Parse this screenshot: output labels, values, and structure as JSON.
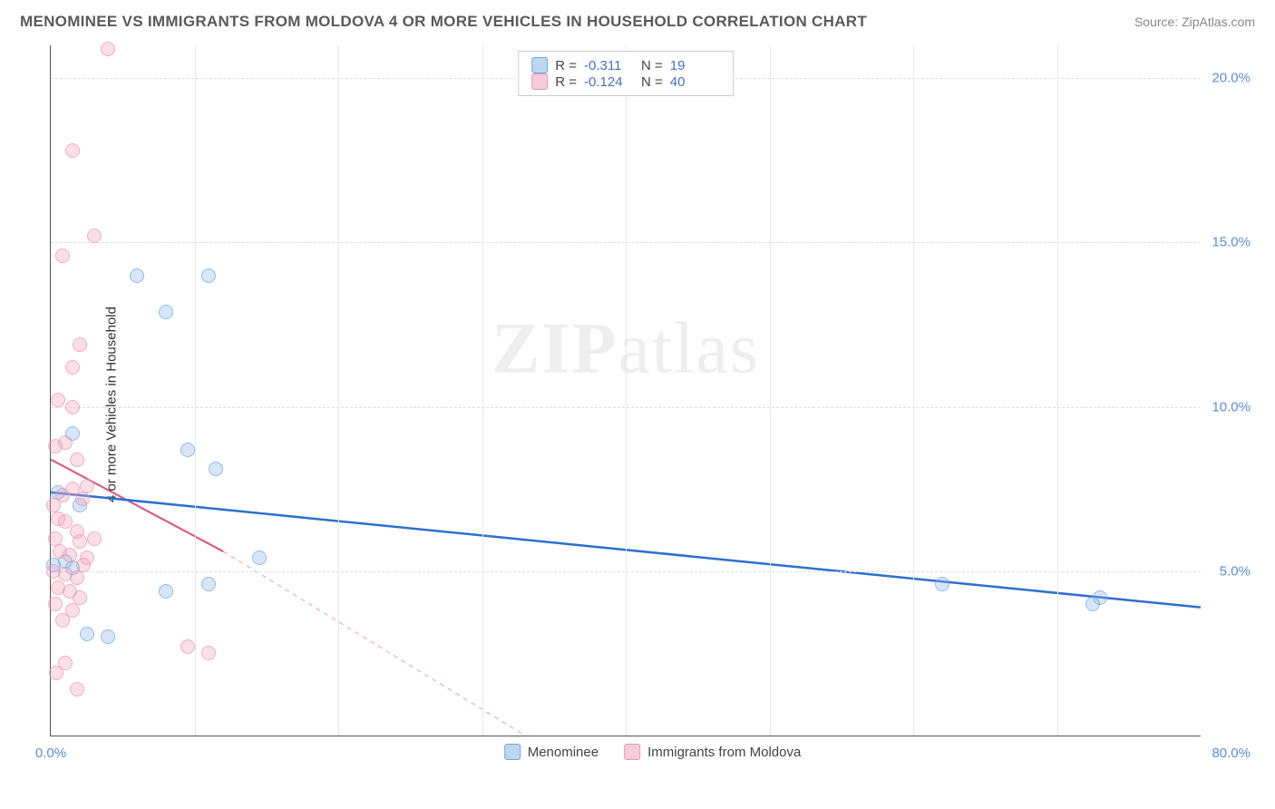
{
  "header": {
    "title": "MENOMINEE VS IMMIGRANTS FROM MOLDOVA 4 OR MORE VEHICLES IN HOUSEHOLD CORRELATION CHART",
    "source": "Source: ZipAtlas.com"
  },
  "watermark": {
    "bold": "ZIP",
    "light": "atlas"
  },
  "chart": {
    "type": "scatter",
    "ylabel": "4 or more Vehicles in Household",
    "background_color": "#ffffff",
    "grid_color": "#dddddd",
    "axis_color": "#555555",
    "tick_color": "#5b8dd6",
    "xlim": [
      0,
      80
    ],
    "ylim": [
      0,
      21
    ],
    "ytick_step": 5,
    "xtick_step": 10,
    "ytick_labels": [
      "5.0%",
      "10.0%",
      "15.0%",
      "20.0%"
    ],
    "xtick_first": "0.0%",
    "xtick_last": "80.0%",
    "marker_size": 16,
    "series": [
      {
        "name": "Menominee",
        "color_fill": "rgba(135,180,230,0.45)",
        "color_stroke": "#6da5e0",
        "r_value": "-0.311",
        "n_value": "19",
        "trend": {
          "x1": 0,
          "y1": 7.4,
          "x2": 80,
          "y2": 3.9,
          "color": "#2f6fd0",
          "width": 2.5,
          "dash": "none"
        },
        "points": [
          {
            "x": 6.0,
            "y": 14.0
          },
          {
            "x": 11.0,
            "y": 14.0
          },
          {
            "x": 8.0,
            "y": 12.9
          },
          {
            "x": 1.5,
            "y": 9.2
          },
          {
            "x": 9.5,
            "y": 8.7
          },
          {
            "x": 11.5,
            "y": 8.1
          },
          {
            "x": 0.5,
            "y": 7.4
          },
          {
            "x": 2.0,
            "y": 7.0
          },
          {
            "x": 1.0,
            "y": 5.3
          },
          {
            "x": 1.5,
            "y": 5.1
          },
          {
            "x": 14.5,
            "y": 5.4
          },
          {
            "x": 8.0,
            "y": 4.4
          },
          {
            "x": 11.0,
            "y": 4.6
          },
          {
            "x": 2.5,
            "y": 3.1
          },
          {
            "x": 4.0,
            "y": 3.0
          },
          {
            "x": 62.0,
            "y": 4.6
          },
          {
            "x": 73.0,
            "y": 4.2
          },
          {
            "x": 72.5,
            "y": 4.0
          },
          {
            "x": 0.2,
            "y": 5.2
          }
        ]
      },
      {
        "name": "Immigrants from Moldova",
        "color_fill": "rgba(240,160,185,0.45)",
        "color_stroke": "#e695b0",
        "r_value": "-0.124",
        "n_value": "40",
        "trend_solid": {
          "x1": 0,
          "y1": 8.4,
          "x2": 12,
          "y2": 5.6,
          "color": "#e05080",
          "width": 2,
          "dash": "none"
        },
        "trend_dashed": {
          "x1": 12,
          "y1": 5.6,
          "x2": 33,
          "y2": 0,
          "color": "#f0a8bc",
          "width": 1.2,
          "dash": "5,5"
        },
        "points": [
          {
            "x": 4.0,
            "y": 20.9
          },
          {
            "x": 1.5,
            "y": 17.8
          },
          {
            "x": 3.0,
            "y": 15.2
          },
          {
            "x": 0.8,
            "y": 14.6
          },
          {
            "x": 2.0,
            "y": 11.9
          },
          {
            "x": 1.5,
            "y": 11.2
          },
          {
            "x": 0.5,
            "y": 10.2
          },
          {
            "x": 1.5,
            "y": 10.0
          },
          {
            "x": 1.0,
            "y": 8.9
          },
          {
            "x": 0.3,
            "y": 8.8
          },
          {
            "x": 1.8,
            "y": 8.4
          },
          {
            "x": 2.5,
            "y": 7.6
          },
          {
            "x": 0.8,
            "y": 7.3
          },
          {
            "x": 1.5,
            "y": 7.5
          },
          {
            "x": 2.2,
            "y": 7.2
          },
          {
            "x": 0.2,
            "y": 7.0
          },
          {
            "x": 0.5,
            "y": 6.6
          },
          {
            "x": 1.0,
            "y": 6.5
          },
          {
            "x": 1.8,
            "y": 6.2
          },
          {
            "x": 0.3,
            "y": 6.0
          },
          {
            "x": 2.0,
            "y": 5.9
          },
          {
            "x": 0.6,
            "y": 5.6
          },
          {
            "x": 1.3,
            "y": 5.5
          },
          {
            "x": 2.5,
            "y": 5.4
          },
          {
            "x": 0.2,
            "y": 5.0
          },
          {
            "x": 1.0,
            "y": 4.9
          },
          {
            "x": 1.8,
            "y": 4.8
          },
          {
            "x": 0.5,
            "y": 4.5
          },
          {
            "x": 1.3,
            "y": 4.4
          },
          {
            "x": 2.0,
            "y": 4.2
          },
          {
            "x": 0.3,
            "y": 4.0
          },
          {
            "x": 1.5,
            "y": 3.8
          },
          {
            "x": 0.8,
            "y": 3.5
          },
          {
            "x": 9.5,
            "y": 2.7
          },
          {
            "x": 11.0,
            "y": 2.5
          },
          {
            "x": 1.0,
            "y": 2.2
          },
          {
            "x": 0.4,
            "y": 1.9
          },
          {
            "x": 1.8,
            "y": 1.4
          },
          {
            "x": 2.3,
            "y": 5.2
          },
          {
            "x": 3.0,
            "y": 6.0
          }
        ]
      }
    ],
    "legend_top_labels": {
      "r": "R =",
      "n": "N =",
      "spacer": " "
    },
    "legend_bottom": [
      {
        "label": "Menominee",
        "series": 0
      },
      {
        "label": "Immigrants from Moldova",
        "series": 1
      }
    ]
  }
}
